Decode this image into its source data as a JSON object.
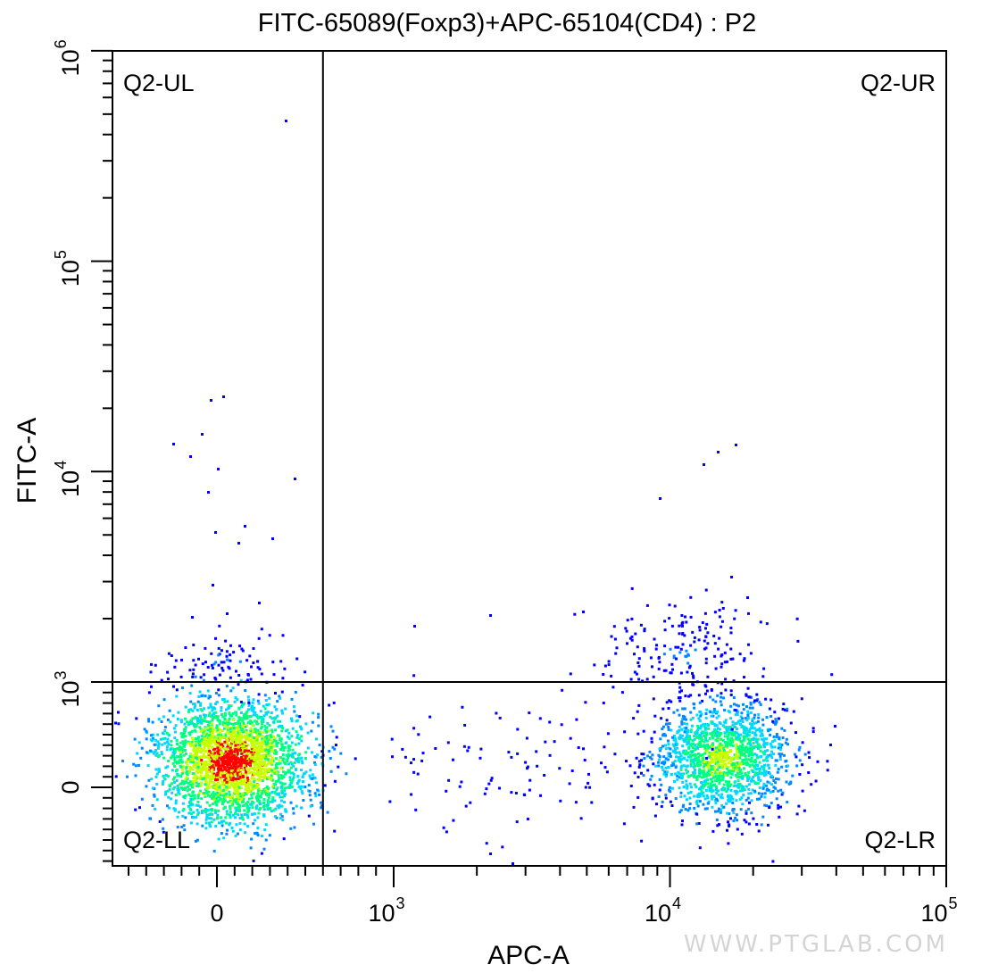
{
  "chart_data": {
    "type": "scatter",
    "plot_style": "flow cytometry pseudocolor density dot plot with quadrant gate",
    "title": "FITC-65089(Foxp3)+APC-65104(CD4) : P2",
    "xlabel": "APC-A",
    "ylabel": "FITC-A",
    "x_scale": "biexponential",
    "y_scale": "biexponential",
    "x_ticks": [
      {
        "base": "0",
        "exp": ""
      },
      {
        "base": "10",
        "exp": "3"
      },
      {
        "base": "10",
        "exp": "4"
      },
      {
        "base": "10",
        "exp": "5"
      }
    ],
    "y_ticks": [
      {
        "base": "0",
        "exp": ""
      },
      {
        "base": "10",
        "exp": "3"
      },
      {
        "base": "10",
        "exp": "4"
      },
      {
        "base": "10",
        "exp": "5"
      },
      {
        "base": "10",
        "exp": "6"
      }
    ],
    "gate": {
      "name": "Q2",
      "x": 600,
      "y": 1000
    },
    "quadrants": {
      "ul": "Q2-UL",
      "ur": "Q2-UR",
      "ll": "Q2-LL",
      "lr": "Q2-LR"
    },
    "populations": [
      {
        "quadrant": "Q2-LL",
        "center": {
          "x": 20,
          "y": 0
        },
        "description": "dense CD4-negative Foxp3-negative cluster"
      },
      {
        "quadrant": "Q2-LR",
        "center": {
          "x": 15000,
          "y": 0
        },
        "description": "CD4-positive Foxp3-negative cluster"
      },
      {
        "quadrant": "Q2-UR",
        "center": {
          "x": 13000,
          "y": 1700
        },
        "description": "sparse CD4-positive Foxp3-positive events"
      },
      {
        "quadrant": "Q2-UL",
        "center": {
          "x": 100,
          "y": 1600
        },
        "description": "sparse Foxp3-positive CD4-negative events"
      }
    ],
    "colors": [
      "#0000ff",
      "#0088ff",
      "#00d8ff",
      "#00ff80",
      "#c8ff00",
      "#ff0000"
    ],
    "grid": false,
    "legend": "none"
  },
  "watermark": "WWW.PTGLAB.COM"
}
